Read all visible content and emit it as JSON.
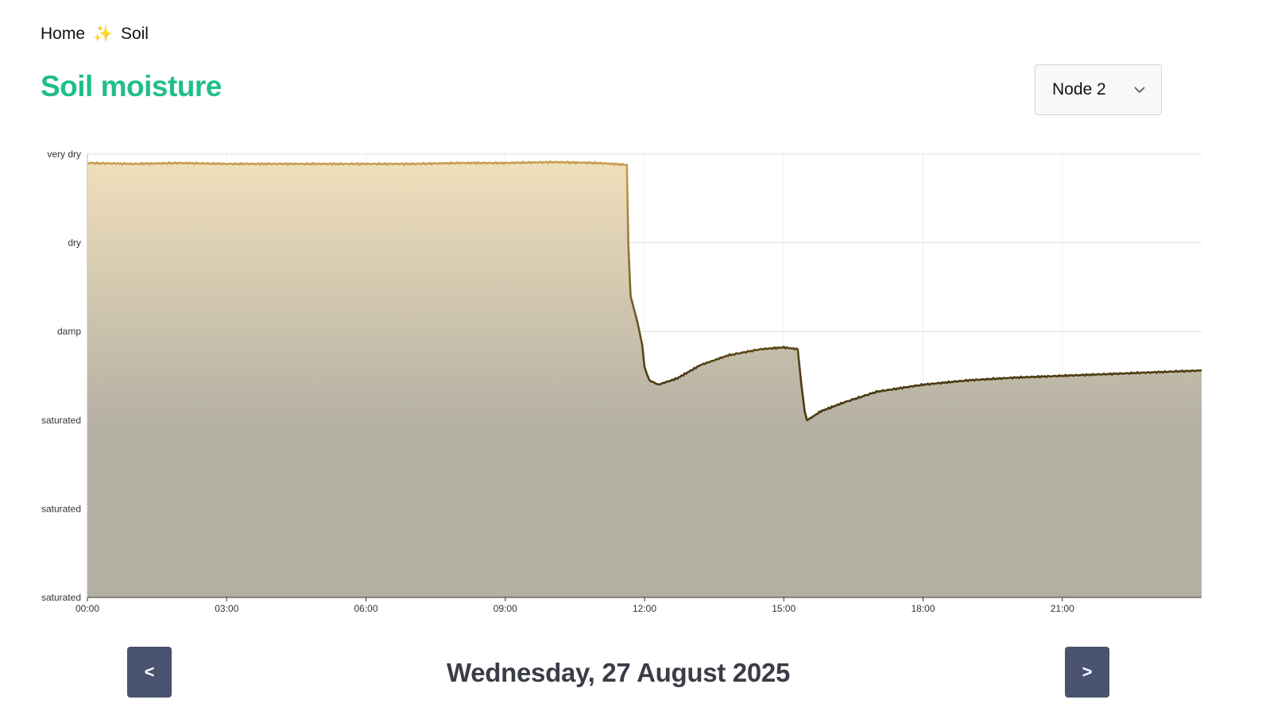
{
  "breadcrumb": {
    "home": "Home",
    "separator": "✨",
    "current": "Soil"
  },
  "page": {
    "title": "Soil moisture"
  },
  "node_select": {
    "value": "Node 2",
    "icon": "chevron-down-icon"
  },
  "navigation": {
    "prev_label": "<",
    "next_label": ">",
    "date": "Wednesday, 27 August 2025"
  },
  "colors": {
    "title": "#1fbf86",
    "line_dry": "#c9a050",
    "line_wet": "#4a3a10",
    "area_top": "#f0dfbb",
    "area_bottom": "#b3afa3",
    "button": "#4a5370"
  },
  "chart_data": {
    "type": "area",
    "x_ticks": [
      "00:00",
      "03:00",
      "06:00",
      "09:00",
      "12:00",
      "15:00",
      "18:00",
      "21:00"
    ],
    "y_ticks": [
      "very dry",
      "dry",
      "damp",
      "saturated",
      "saturated",
      "saturated"
    ],
    "xlim": [
      0,
      24
    ],
    "ylim": [
      0,
      5
    ],
    "grid": true,
    "series": [
      {
        "x": [
          0,
          1,
          2,
          3,
          4,
          5,
          6,
          7,
          8,
          9,
          10,
          11,
          11.62,
          11.65,
          11.7,
          11.75,
          11.85,
          11.95,
          12.0,
          12.1,
          12.3,
          12.7,
          13.2,
          13.8,
          14.5,
          15.0,
          15.3,
          15.38,
          15.45,
          15.5,
          15.6,
          15.8,
          16.3,
          17.0,
          18.0,
          19.0,
          20.0,
          21.0,
          22.0,
          23.0,
          24.0
        ],
        "y": [
          4.9,
          4.89,
          4.9,
          4.89,
          4.89,
          4.89,
          4.89,
          4.89,
          4.9,
          4.9,
          4.91,
          4.9,
          4.88,
          4.0,
          3.4,
          3.3,
          3.1,
          2.85,
          2.6,
          2.45,
          2.4,
          2.47,
          2.62,
          2.73,
          2.8,
          2.82,
          2.8,
          2.4,
          2.1,
          2.0,
          2.03,
          2.1,
          2.2,
          2.32,
          2.4,
          2.45,
          2.48,
          2.5,
          2.52,
          2.54,
          2.56
        ]
      }
    ]
  }
}
